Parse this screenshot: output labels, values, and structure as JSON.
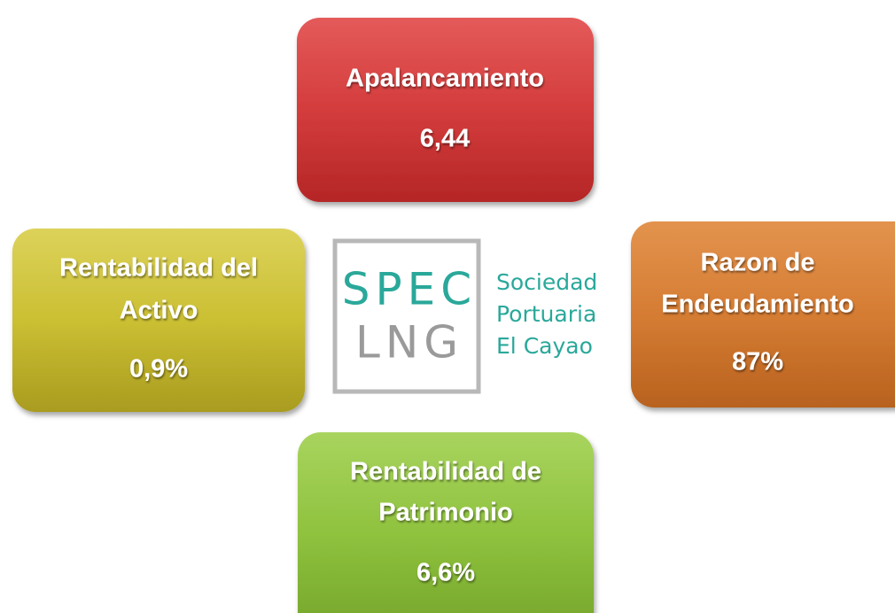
{
  "boxes": [
    {
      "title": [
        "Apalancamiento"
      ],
      "value": "6,44"
    },
    {
      "title": [
        "Rentabilidad del",
        "Activo"
      ],
      "value": "0,9%"
    },
    {
      "title": [
        "Razon de",
        "Endeudamiento"
      ],
      "value": "87%"
    },
    {
      "title": [
        "Rentabilidad de",
        "Patrimonio"
      ],
      "value": "6,6%"
    }
  ],
  "logo": {
    "mark": [
      "SPEC",
      "LNG"
    ],
    "name": [
      "Sociedad",
      "Portuaria",
      "El Cayao"
    ]
  }
}
